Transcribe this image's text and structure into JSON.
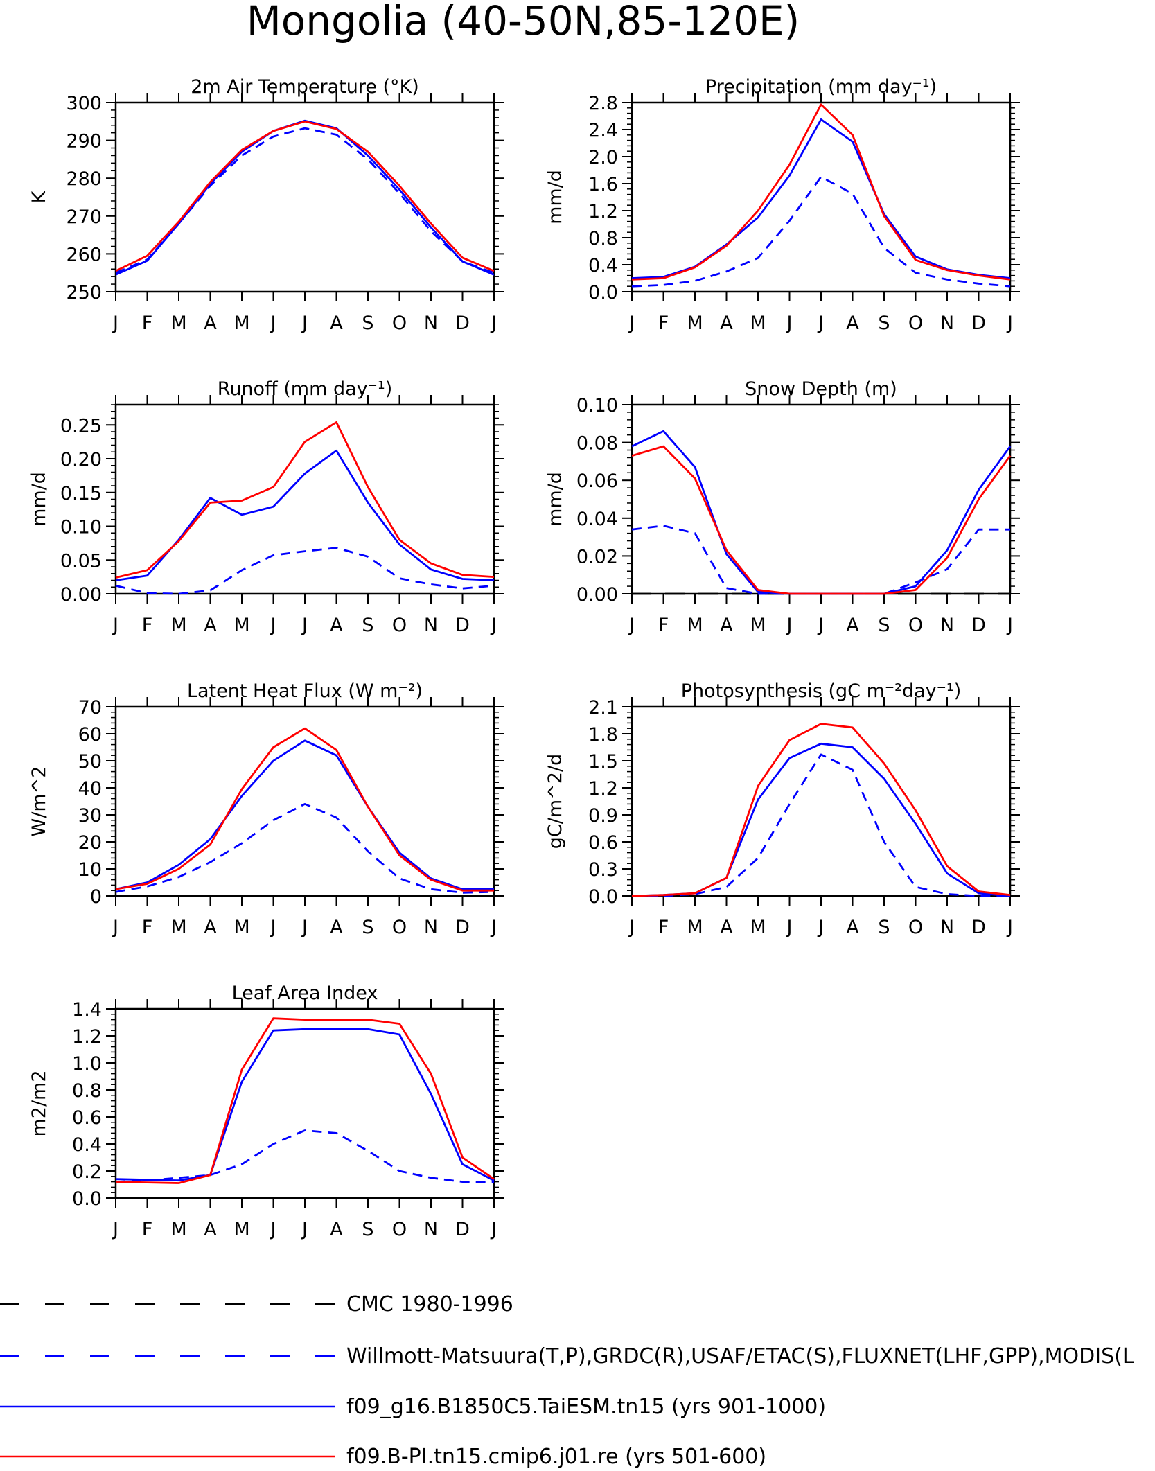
{
  "figure_title": "Mongolia (40-50N,85-120E)",
  "chart_data": [
    {
      "type": "line",
      "title": "2m Air Temperature (°K)",
      "ylabel": "K",
      "x": [
        "J",
        "F",
        "M",
        "A",
        "M",
        "J",
        "J",
        "A",
        "S",
        "O",
        "N",
        "D",
        "J"
      ],
      "ylim": [
        250,
        300
      ],
      "yticks": [
        "250",
        "260",
        "270",
        "280",
        "290",
        "300"
      ],
      "series": [
        {
          "name": "Willmott-Matsuura(T,P),GRDC(R),USAF/ETAC(S),FLUXNET(LHF,GPP),MODIS(L",
          "values": [
            255,
            258.5,
            268,
            278,
            286,
            291,
            293.2,
            291.5,
            285,
            276,
            266,
            258,
            255
          ]
        },
        {
          "name": "f09_g16.B1850C5.TaiESM.tn15 (yrs 901-1000)",
          "values": [
            254.5,
            258.2,
            268,
            278.5,
            287,
            292.5,
            295.2,
            293.2,
            286,
            277,
            267,
            258,
            254.5
          ]
        },
        {
          "name": "f09.B-PI.tn15.cmip6.j01.re (yrs 501-600)",
          "values": [
            255.5,
            259.5,
            268.5,
            279,
            287.5,
            292.5,
            295,
            293,
            287,
            278,
            268,
            259,
            255.5
          ]
        }
      ]
    },
    {
      "type": "line",
      "title": "Precipitation (mm day⁻¹)",
      "ylabel": "mm/d",
      "x": [
        "J",
        "F",
        "M",
        "A",
        "M",
        "J",
        "J",
        "A",
        "S",
        "O",
        "N",
        "D",
        "J"
      ],
      "ylim": [
        0,
        2.8
      ],
      "yticks": [
        "0.0",
        "0.4",
        "0.8",
        "1.2",
        "1.6",
        "2.0",
        "2.4",
        "2.8"
      ],
      "series": [
        {
          "name": "Willmott-Matsuura(T,P),GRDC(R),USAF/ETAC(S),FLUXNET(LHF,GPP),MODIS(L",
          "values": [
            0.08,
            0.1,
            0.16,
            0.3,
            0.5,
            1.05,
            1.7,
            1.45,
            0.65,
            0.28,
            0.18,
            0.12,
            0.08
          ]
        },
        {
          "name": "f09_g16.B1850C5.TaiESM.tn15 (yrs 901-1000)",
          "values": [
            0.2,
            0.22,
            0.37,
            0.7,
            1.1,
            1.72,
            2.55,
            2.22,
            1.15,
            0.52,
            0.33,
            0.25,
            0.2
          ]
        },
        {
          "name": "f09.B-PI.tn15.cmip6.j01.re (yrs 501-600)",
          "values": [
            0.18,
            0.2,
            0.36,
            0.68,
            1.2,
            1.88,
            2.77,
            2.32,
            1.12,
            0.47,
            0.32,
            0.24,
            0.18
          ]
        }
      ]
    },
    {
      "type": "line",
      "title": "Runoff (mm day⁻¹)",
      "ylabel": "mm/d",
      "x": [
        "J",
        "F",
        "M",
        "A",
        "M",
        "J",
        "J",
        "A",
        "S",
        "O",
        "N",
        "D",
        "J"
      ],
      "ylim": [
        0,
        0.28
      ],
      "yticks": [
        "0.00",
        "0.05",
        "0.10",
        "0.15",
        "0.20",
        "0.25"
      ],
      "series": [
        {
          "name": "Willmott-Matsuura(T,P),GRDC(R),USAF/ETAC(S),FLUXNET(LHF,GPP),MODIS(L",
          "values": [
            0.012,
            0.001,
            0.0,
            0.005,
            0.035,
            0.057,
            0.063,
            0.068,
            0.055,
            0.023,
            0.014,
            0.008,
            0.012
          ]
        },
        {
          "name": "f09_g16.B1850C5.TaiESM.tn15 (yrs 901-1000)",
          "values": [
            0.02,
            0.027,
            0.08,
            0.142,
            0.117,
            0.129,
            0.178,
            0.212,
            0.135,
            0.073,
            0.036,
            0.022,
            0.02
          ]
        },
        {
          "name": "f09.B-PI.tn15.cmip6.j01.re (yrs 501-600)",
          "values": [
            0.024,
            0.035,
            0.078,
            0.135,
            0.138,
            0.158,
            0.225,
            0.254,
            0.158,
            0.08,
            0.045,
            0.028,
            0.025
          ]
        }
      ]
    },
    {
      "type": "line",
      "title": "Snow Depth (m)",
      "ylabel": "mm/d",
      "x": [
        "J",
        "F",
        "M",
        "A",
        "M",
        "J",
        "J",
        "A",
        "S",
        "O",
        "N",
        "D",
        "J"
      ],
      "ylim": [
        0,
        0.1
      ],
      "yticks": [
        "0.00",
        "0.02",
        "0.04",
        "0.06",
        "0.08",
        "0.10"
      ],
      "series": [
        {
          "name": "CMC 1980-1996",
          "values": [
            0,
            0,
            0,
            0,
            0,
            0,
            0,
            0,
            0,
            0,
            0,
            0,
            0
          ]
        },
        {
          "name": "Willmott-Matsuura(T,P),GRDC(R),USAF/ETAC(S),FLUXNET(LHF,GPP),MODIS(L",
          "values": [
            0.034,
            0.036,
            0.032,
            0.003,
            0.0,
            0.0,
            0.0,
            0.0,
            0.0,
            0.006,
            0.013,
            0.034,
            0.034
          ]
        },
        {
          "name": "f09_g16.B1850C5.TaiESM.tn15 (yrs 901-1000)",
          "values": [
            0.078,
            0.086,
            0.067,
            0.021,
            0.001,
            0.0,
            0.0,
            0.0,
            0.0,
            0.004,
            0.023,
            0.055,
            0.078
          ]
        },
        {
          "name": "f09.B-PI.tn15.cmip6.j01.re (yrs 501-600)",
          "values": [
            0.073,
            0.078,
            0.061,
            0.023,
            0.002,
            0.0,
            0.0,
            0.0,
            0.0,
            0.002,
            0.019,
            0.05,
            0.073
          ]
        }
      ]
    },
    {
      "type": "line",
      "title": "Latent Heat Flux (W m⁻²)",
      "ylabel": "W/m^2",
      "x": [
        "J",
        "F",
        "M",
        "A",
        "M",
        "J",
        "J",
        "A",
        "S",
        "O",
        "N",
        "D",
        "J"
      ],
      "ylim": [
        0,
        70
      ],
      "yticks": [
        "0",
        "10",
        "20",
        "30",
        "40",
        "50",
        "60",
        "70"
      ],
      "series": [
        {
          "name": "Willmott-Matsuura(T,P),GRDC(R),USAF/ETAC(S),FLUXNET(LHF,GPP),MODIS(L",
          "values": [
            1.5,
            3.5,
            7,
            12.5,
            19.5,
            28,
            34,
            29,
            16.5,
            6.5,
            2.5,
            1.2,
            1.5
          ]
        },
        {
          "name": "f09_g16.B1850C5.TaiESM.tn15 (yrs 901-1000)",
          "values": [
            2.5,
            5,
            11.5,
            21,
            37,
            50,
            57.5,
            52,
            33,
            16,
            6.5,
            2.5,
            2.5
          ]
        },
        {
          "name": "f09.B-PI.tn15.cmip6.j01.re (yrs 501-600)",
          "values": [
            2.5,
            4.5,
            10,
            19,
            39.5,
            55,
            62,
            54,
            33,
            15,
            6,
            2,
            2
          ]
        }
      ]
    },
    {
      "type": "line",
      "title": "Photosynthesis (gC m⁻²day⁻¹)",
      "ylabel": "gC/m^2/d",
      "x": [
        "J",
        "F",
        "M",
        "A",
        "M",
        "J",
        "J",
        "A",
        "S",
        "O",
        "N",
        "D",
        "J"
      ],
      "ylim": [
        0,
        2.1
      ],
      "yticks": [
        "0.0",
        "0.3",
        "0.6",
        "0.9",
        "1.2",
        "1.5",
        "1.8",
        "2.1"
      ],
      "series": [
        {
          "name": "Willmott-Matsuura(T,P),GRDC(R),USAF/ETAC(S),FLUXNET(LHF,GPP),MODIS(L",
          "values": [
            0,
            0,
            0.02,
            0.1,
            0.42,
            1.02,
            1.57,
            1.4,
            0.6,
            0.1,
            0.02,
            0,
            0
          ]
        },
        {
          "name": "f09_g16.B1850C5.TaiESM.tn15 (yrs 901-1000)",
          "values": [
            0,
            0.01,
            0.03,
            0.2,
            1.07,
            1.53,
            1.69,
            1.65,
            1.3,
            0.8,
            0.25,
            0.03,
            0
          ]
        },
        {
          "name": "f09.B-PI.tn15.cmip6.j01.re (yrs 501-600)",
          "values": [
            0,
            0.01,
            0.03,
            0.2,
            1.22,
            1.73,
            1.91,
            1.87,
            1.47,
            0.95,
            0.33,
            0.05,
            0.01
          ]
        }
      ]
    },
    {
      "type": "line",
      "title": "Leaf Area Index",
      "ylabel": "m2/m2",
      "x": [
        "J",
        "F",
        "M",
        "A",
        "M",
        "J",
        "J",
        "A",
        "S",
        "O",
        "N",
        "D",
        "J"
      ],
      "ylim": [
        0,
        1.4
      ],
      "yticks": [
        "0.0",
        "0.2",
        "0.4",
        "0.6",
        "0.8",
        "1.0",
        "1.2",
        "1.4"
      ],
      "series": [
        {
          "name": "Willmott-Matsuura(T,P),GRDC(R),USAF/ETAC(S),FLUXNET(LHF,GPP),MODIS(L",
          "values": [
            0.12,
            0.13,
            0.15,
            0.17,
            0.25,
            0.4,
            0.5,
            0.48,
            0.35,
            0.2,
            0.15,
            0.12,
            0.12
          ]
        },
        {
          "name": "f09_g16.B1850C5.TaiESM.tn15 (yrs 901-1000)",
          "values": [
            0.14,
            0.135,
            0.13,
            0.17,
            0.86,
            1.24,
            1.25,
            1.25,
            1.25,
            1.21,
            0.77,
            0.25,
            0.13
          ]
        },
        {
          "name": "f09.B-PI.tn15.cmip6.j01.re (yrs 501-600)",
          "values": [
            0.12,
            0.115,
            0.11,
            0.17,
            0.95,
            1.33,
            1.32,
            1.32,
            1.32,
            1.29,
            0.92,
            0.3,
            0.14
          ]
        }
      ]
    }
  ],
  "legend": [
    {
      "name": "CMC 1980-1996",
      "color": "#000000",
      "style": "dashed"
    },
    {
      "name": "Willmott-Matsuura(T,P),GRDC(R),USAF/ETAC(S),FLUXNET(LHF,GPP),MODIS(L",
      "color": "#0000ff",
      "style": "dashed"
    },
    {
      "name": "f09_g16.B1850C5.TaiESM.tn15 (yrs 901-1000)",
      "color": "#0000ff",
      "style": "solid"
    },
    {
      "name": "f09.B-PI.tn15.cmip6.j01.re (yrs 501-600)",
      "color": "#ff0000",
      "style": "solid"
    }
  ]
}
